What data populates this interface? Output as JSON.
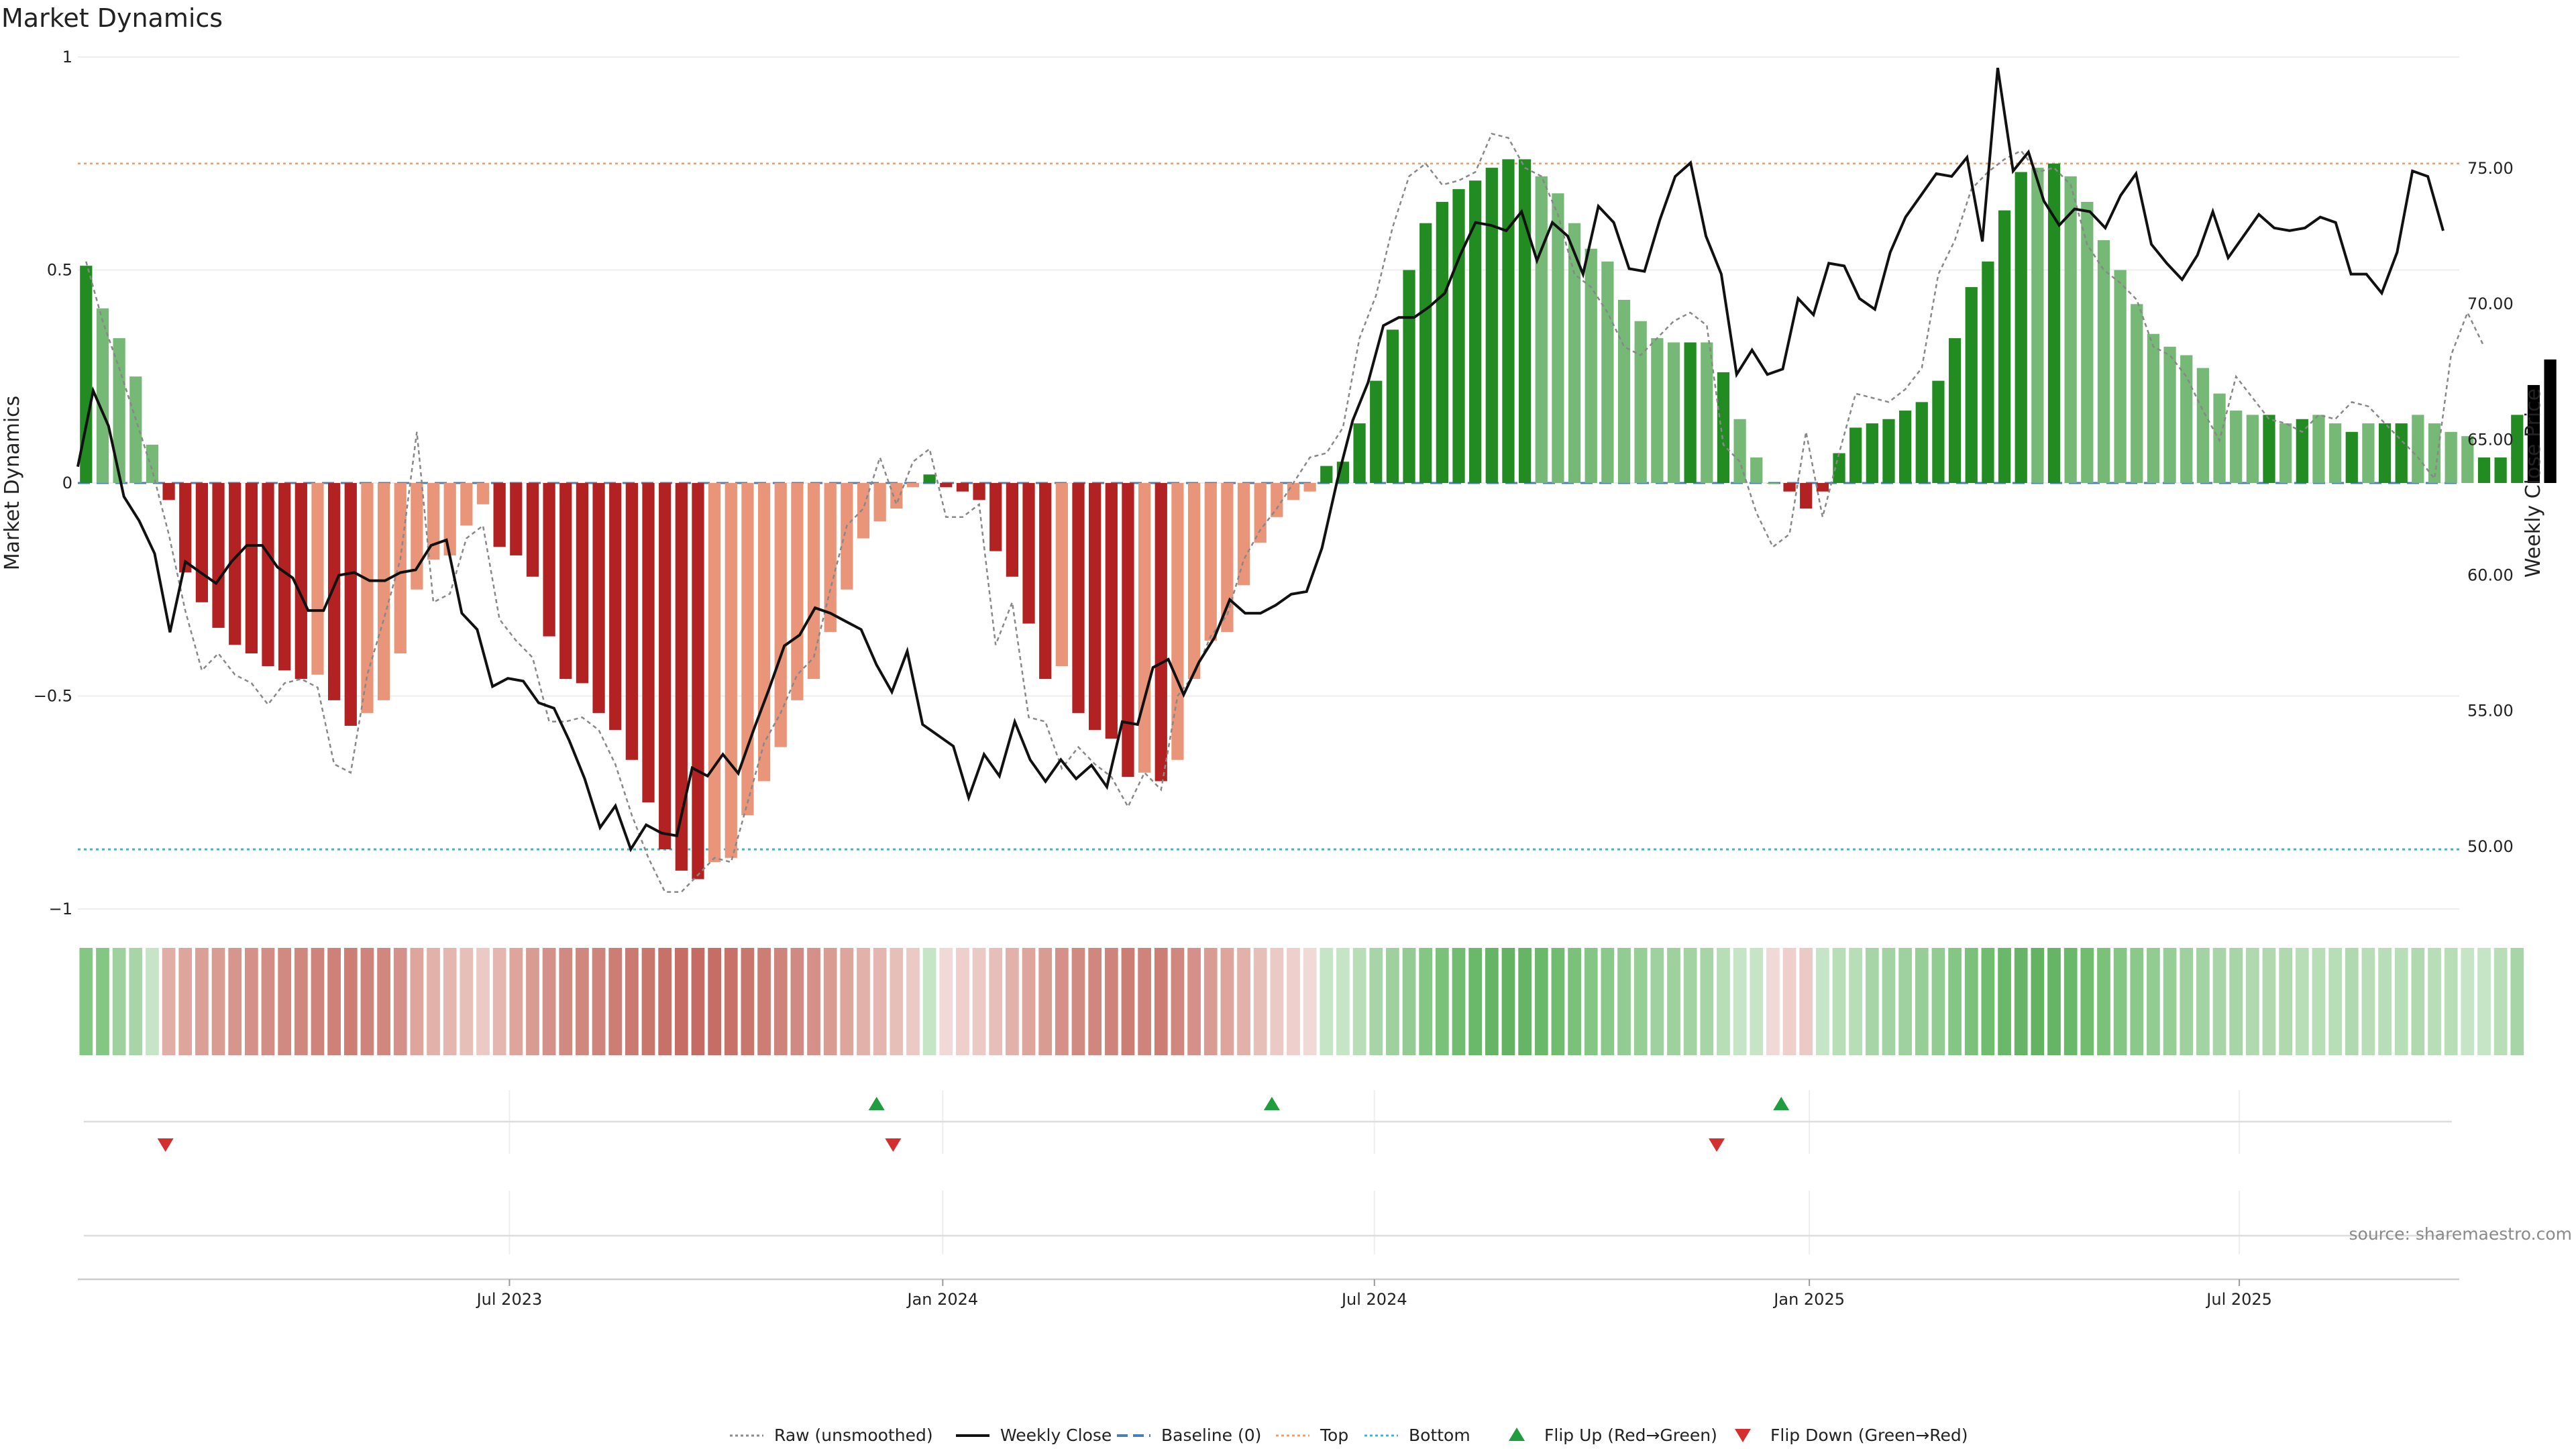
{
  "chart_data": {
    "type": "bar",
    "title": "Market Dynamics",
    "ylabel_left": "Market Dynamics",
    "ylabel_right": "Weekly Close Price",
    "ylim_left": [
      -1,
      1
    ],
    "ylim_right": [
      47.7,
      79.1
    ],
    "left_ticks": [
      "1",
      "0.5",
      "0",
      "−0.5",
      "−1"
    ],
    "left_tick_values": [
      1,
      0.5,
      0,
      -0.5,
      -1
    ],
    "right_ticks": [
      "75.00",
      "70.00",
      "65.00",
      "60.00",
      "55.00",
      "50.00"
    ],
    "right_tick_values": [
      75,
      70,
      65,
      60,
      55,
      50
    ],
    "x_ticks": [
      "Jul 2023",
      "Jan 2024",
      "Jul 2024",
      "Jan 2025",
      "Jul 2025"
    ],
    "x_tick_weeks": [
      26.1,
      52.3,
      78.4,
      104.7,
      130.7
    ],
    "top_level": 0.75,
    "bottom_level": -0.86,
    "baseline": 0,
    "weeks": 144,
    "bar_values": [
      0.51,
      0.41,
      0.34,
      0.25,
      0.09,
      -0.04,
      -0.21,
      -0.28,
      -0.34,
      -0.38,
      -0.4,
      -0.43,
      -0.44,
      -0.46,
      -0.45,
      -0.51,
      -0.57,
      -0.54,
      -0.51,
      -0.4,
      -0.25,
      -0.18,
      -0.17,
      -0.1,
      -0.05,
      -0.15,
      -0.17,
      -0.22,
      -0.36,
      -0.46,
      -0.47,
      -0.54,
      -0.58,
      -0.65,
      -0.75,
      -0.86,
      -0.91,
      -0.93,
      -0.89,
      -0.88,
      -0.78,
      -0.7,
      -0.62,
      -0.51,
      -0.46,
      -0.35,
      -0.25,
      -0.13,
      -0.09,
      -0.06,
      -0.01,
      0.02,
      -0.01,
      -0.02,
      -0.04,
      -0.16,
      -0.22,
      -0.33,
      -0.46,
      -0.43,
      -0.54,
      -0.58,
      -0.6,
      -0.69,
      -0.68,
      -0.7,
      -0.65,
      -0.46,
      -0.37,
      -0.35,
      -0.24,
      -0.14,
      -0.08,
      -0.04,
      -0.02,
      0.04,
      0.05,
      0.14,
      0.24,
      0.36,
      0.5,
      0.61,
      0.66,
      0.69,
      0.71,
      0.74,
      0.76,
      0.76,
      0.72,
      0.68,
      0.61,
      0.55,
      0.52,
      0.43,
      0.38,
      0.34,
      0.33,
      0.33,
      0.33,
      0.26,
      0.15,
      0.06,
      0.0,
      -0.02,
      -0.06,
      -0.02,
      0.07,
      0.13,
      0.14,
      0.15,
      0.17,
      0.19,
      0.24,
      0.34,
      0.46,
      0.52,
      0.64,
      0.73,
      0.74,
      0.75,
      0.72,
      0.66,
      0.57,
      0.5,
      0.42,
      0.35,
      0.32,
      0.3,
      0.27,
      0.21,
      0.17,
      0.16,
      0.16,
      0.14,
      0.15,
      0.16,
      0.14,
      0.12,
      0.14,
      0.14,
      0.14,
      0.16,
      0.14,
      0.12,
      0.11,
      0.06,
      0.06,
      0.16,
      0.23,
      0.29
    ],
    "bar_colors": [
      "#228B22",
      "#76B876",
      "#76B876",
      "#76B876",
      "#76B876",
      "#B22222",
      "#B22222",
      "#B22222",
      "#B22222",
      "#B22222",
      "#B22222",
      "#B22222",
      "#B22222",
      "#B22222",
      "#E8957A",
      "#B22222",
      "#B22222",
      "#E8957A",
      "#E8957A",
      "#E8957A",
      "#E8957A",
      "#E8957A",
      "#E8957A",
      "#E8957A",
      "#E8957A",
      "#B22222",
      "#B22222",
      "#B22222",
      "#B22222",
      "#B22222",
      "#B22222",
      "#B22222",
      "#B22222",
      "#B22222",
      "#B22222",
      "#B22222",
      "#B22222",
      "#B22222",
      "#E8957A",
      "#E8957A",
      "#E8957A",
      "#E8957A",
      "#E8957A",
      "#E8957A",
      "#E8957A",
      "#E8957A",
      "#E8957A",
      "#E8957A",
      "#E8957A",
      "#E8957A",
      "#E8957A",
      "#228B22",
      "#B22222",
      "#B22222",
      "#B22222",
      "#B22222",
      "#B22222",
      "#B22222",
      "#B22222",
      "#E8957A",
      "#B22222",
      "#B22222",
      "#B22222",
      "#B22222",
      "#E8957A",
      "#B22222",
      "#E8957A",
      "#E8957A",
      "#E8957A",
      "#E8957A",
      "#E8957A",
      "#E8957A",
      "#E8957A",
      "#E8957A",
      "#E8957A",
      "#228B22",
      "#228B22",
      "#228B22",
      "#228B22",
      "#228B22",
      "#228B22",
      "#228B22",
      "#228B22",
      "#228B22",
      "#228B22",
      "#228B22",
      "#228B22",
      "#228B22",
      "#76B876",
      "#76B876",
      "#76B876",
      "#76B876",
      "#76B876",
      "#76B876",
      "#76B876",
      "#76B876",
      "#76B876",
      "#228B22",
      "#76B876",
      "#228B22",
      "#76B876",
      "#76B876",
      "#76B876",
      "#B22222",
      "#B22222",
      "#B22222",
      "#228B22",
      "#228B22",
      "#228B22",
      "#228B22",
      "#228B22",
      "#228B22",
      "#228B22",
      "#228B22",
      "#228B22",
      "#228B22",
      "#228B22",
      "#228B22",
      "#76B876",
      "#228B22",
      "#76B876",
      "#76B876",
      "#76B876",
      "#76B876",
      "#76B876",
      "#76B876",
      "#76B876",
      "#76B876",
      "#76B876",
      "#76B876",
      "#76B876",
      "#76B876",
      "#228B22",
      "#76B876",
      "#228B22",
      "#76B876",
      "#76B876",
      "#228B22",
      "#76B876",
      "#228B22",
      "#228B22",
      "#76B876",
      "#76B876",
      "#76B876",
      "#76B876",
      "#228B22",
      "#228B22",
      "#228B22"
    ],
    "strip_colors": [
      "#84C784",
      "#84C784",
      "#9FD19F",
      "#A8D5A8",
      "#C6E5C6",
      "#E0AEA6",
      "#DDA59C",
      "#DAA098",
      "#D99C93",
      "#D6968D",
      "#D59189",
      "#D38D84",
      "#D18A81",
      "#D0877E",
      "#CE847B",
      "#CD8178",
      "#CC7E75",
      "#CE847B",
      "#D0877E",
      "#D59189",
      "#DDA59C",
      "#E2B1A9",
      "#E4B6AF",
      "#E7BFB9",
      "#EBC9C4",
      "#E4B6AF",
      "#DDA59C",
      "#D99C93",
      "#D59189",
      "#D18A81",
      "#D0877E",
      "#CE847B",
      "#CC7E75",
      "#CA7A71",
      "#C9766D",
      "#C77169",
      "#C66E66",
      "#C56B63",
      "#C66E66",
      "#C77169",
      "#C9766D",
      "#CC7E75",
      "#CE847B",
      "#D18A81",
      "#D59189",
      "#D99C93",
      "#DDA59C",
      "#E2B1A9",
      "#E4B6AF",
      "#E7BFB9",
      "#EBC9C4",
      "#C6E5C6",
      "#F0D9D6",
      "#EECFCB",
      "#EBC9C4",
      "#E7BFB9",
      "#E2B1A9",
      "#DDA59C",
      "#D99C93",
      "#D59189",
      "#D18A81",
      "#D0877E",
      "#CE847B",
      "#CC7E75",
      "#CE847B",
      "#CC7E75",
      "#D0877E",
      "#D59189",
      "#D99C93",
      "#DDA59C",
      "#E2B1A9",
      "#E7BFB9",
      "#EBC9C4",
      "#EECFCB",
      "#F0D9D6",
      "#C6E5C6",
      "#C6E5C6",
      "#B8DEB8",
      "#A8D5A8",
      "#9FD19F",
      "#92CC92",
      "#84C784",
      "#7AC27A",
      "#70BD70",
      "#6AB86A",
      "#66B566",
      "#63B363",
      "#66B566",
      "#6AB86A",
      "#70BD70",
      "#7AC27A",
      "#84C784",
      "#8AC98A",
      "#92CC92",
      "#96CE96",
      "#9FD19F",
      "#9FD19F",
      "#A3D3A3",
      "#A8D5A8",
      "#B8DEB8",
      "#C6E5C6",
      "#C6E5C6",
      "#F0D9D6",
      "#EECFCB",
      "#EBC9C4",
      "#C6E5C6",
      "#B8DEB8",
      "#B8DEB8",
      "#A8D5A8",
      "#A3D3A3",
      "#9FD19F",
      "#96CE96",
      "#92CC92",
      "#84C784",
      "#7AC27A",
      "#70BD70",
      "#6AB86A",
      "#66B566",
      "#63B363",
      "#66B566",
      "#6AB86A",
      "#70BD70",
      "#7AC27A",
      "#84C784",
      "#8AC98A",
      "#92CC92",
      "#96CE96",
      "#9FD19F",
      "#A3D3A3",
      "#A8D5A8",
      "#A8D5A8",
      "#B0D9B0",
      "#B0D9B0",
      "#B0D9B0",
      "#B8DEB8",
      "#B8DEB8",
      "#B8DEB8",
      "#B0D9B0",
      "#B8DEB8",
      "#B8DEB8",
      "#B8DEB8",
      "#B0D9B0",
      "#B8DEB8",
      "#B8DEB8",
      "#C6E5C6",
      "#C6E5C6",
      "#B8DEB8",
      "#A8D5A8"
    ],
    "raw_values": [
      0.52,
      0.38,
      0.27,
      0.15,
      0.03,
      -0.12,
      -0.3,
      -0.44,
      -0.4,
      -0.45,
      -0.47,
      -0.52,
      -0.47,
      -0.46,
      -0.48,
      -0.66,
      -0.68,
      -0.45,
      -0.32,
      -0.18,
      0.12,
      -0.28,
      -0.26,
      -0.13,
      -0.1,
      -0.32,
      -0.37,
      -0.41,
      -0.56,
      -0.56,
      -0.55,
      -0.58,
      -0.66,
      -0.78,
      -0.88,
      -0.96,
      -0.96,
      -0.92,
      -0.88,
      -0.89,
      -0.75,
      -0.61,
      -0.54,
      -0.45,
      -0.41,
      -0.25,
      -0.1,
      -0.06,
      0.06,
      -0.05,
      0.05,
      0.08,
      -0.08,
      -0.08,
      -0.05,
      -0.38,
      -0.28,
      -0.55,
      -0.56,
      -0.67,
      -0.62,
      -0.66,
      -0.69,
      -0.76,
      -0.68,
      -0.72,
      -0.5,
      -0.45,
      -0.36,
      -0.31,
      -0.18,
      -0.11,
      -0.06,
      0.0,
      0.06,
      0.07,
      0.13,
      0.34,
      0.44,
      0.6,
      0.72,
      0.75,
      0.7,
      0.71,
      0.73,
      0.82,
      0.81,
      0.74,
      0.72,
      0.63,
      0.49,
      0.46,
      0.4,
      0.32,
      0.3,
      0.34,
      0.38,
      0.4,
      0.37,
      0.09,
      0.05,
      -0.07,
      -0.15,
      -0.12,
      0.12,
      -0.08,
      0.07,
      0.21,
      0.2,
      0.19,
      0.22,
      0.27,
      0.49,
      0.57,
      0.69,
      0.73,
      0.76,
      0.78,
      0.73,
      0.74,
      0.7,
      0.56,
      0.5,
      0.47,
      0.43,
      0.32,
      0.3,
      0.25,
      0.17,
      0.1,
      0.25,
      0.2,
      0.15,
      0.14,
      0.12,
      0.16,
      0.15,
      0.19,
      0.18,
      0.14,
      0.1,
      0.06,
      0.01,
      0.3,
      0.4,
      0.32
    ],
    "close_values": [
      64.0,
      66.8,
      65.5,
      62.9,
      62.0,
      60.8,
      57.9,
      60.5,
      60.1,
      59.7,
      60.5,
      61.1,
      61.1,
      60.3,
      59.9,
      58.7,
      58.7,
      60.0,
      60.1,
      59.8,
      59.8,
      60.1,
      60.2,
      61.1,
      61.3,
      58.6,
      58.0,
      55.9,
      56.2,
      56.1,
      55.3,
      55.1,
      53.9,
      52.5,
      50.7,
      51.5,
      49.9,
      50.8,
      50.5,
      50.4,
      52.9,
      52.6,
      53.4,
      52.7,
      54.3,
      55.8,
      57.4,
      57.8,
      58.8,
      58.6,
      58.3,
      58.0,
      56.7,
      55.7,
      57.2,
      54.5,
      54.1,
      53.7,
      51.8,
      53.4,
      52.6,
      54.6,
      53.2,
      52.4,
      53.2,
      52.5,
      53.0,
      52.2,
      54.6,
      54.5,
      56.6,
      56.9,
      55.6,
      56.8,
      57.7,
      59.1,
      58.6,
      58.6,
      58.9,
      59.3,
      59.4,
      61.0,
      63.5,
      65.7,
      67.1,
      69.2,
      69.5,
      69.5,
      69.9,
      70.4,
      71.8,
      73.0,
      72.9,
      72.7,
      73.4,
      71.6,
      73.0,
      72.5,
      71.1,
      73.6,
      73.0,
      71.3,
      71.2,
      73.1,
      74.7,
      75.2,
      72.5,
      71.1,
      67.4,
      68.3,
      67.4,
      67.6,
      70.2,
      69.6,
      71.5,
      71.4,
      70.2,
      69.8,
      71.9,
      73.2,
      74.0,
      74.8,
      74.7,
      75.4,
      72.3,
      78.7,
      74.9,
      75.6,
      73.8,
      72.9,
      73.5,
      73.4,
      72.8,
      74.0,
      74.8,
      72.2,
      71.5,
      70.9,
      71.8,
      73.4,
      71.7,
      72.5,
      73.3,
      72.8,
      72.7,
      72.8,
      73.2,
      73.0,
      71.1,
      71.1,
      70.4,
      71.9,
      74.9,
      74.7,
      72.7
    ]
  },
  "markers": {
    "flip_up_weeks": [
      48.3,
      72.2,
      103.0
    ],
    "flip_down_weeks": [
      5.3,
      49.3,
      99.1
    ],
    "flip_up_color": "#1F9D3F",
    "flip_down_color": "#D32F2F"
  },
  "legend": [
    {
      "label": "Raw (unsmoothed)",
      "kind": "dotted-line",
      "color": "#888888"
    },
    {
      "label": "Weekly Close",
      "kind": "solid-line",
      "color": "#111111"
    },
    {
      "label": "Baseline (0)",
      "kind": "dashed-line",
      "color": "#4A7FB5"
    },
    {
      "label": "Top",
      "kind": "dotted-line",
      "color": "#E0A27A"
    },
    {
      "label": "Bottom",
      "kind": "dotted-line",
      "color": "#3BB8C8"
    },
    {
      "label": "Flip Up (Red→Green)",
      "kind": "triangle-up",
      "color": "#1F9D3F"
    },
    {
      "label": "Flip Down (Green→Red)",
      "kind": "triangle-down",
      "color": "#D32F2F"
    }
  ],
  "source_text": "source: sharemaestro.com"
}
